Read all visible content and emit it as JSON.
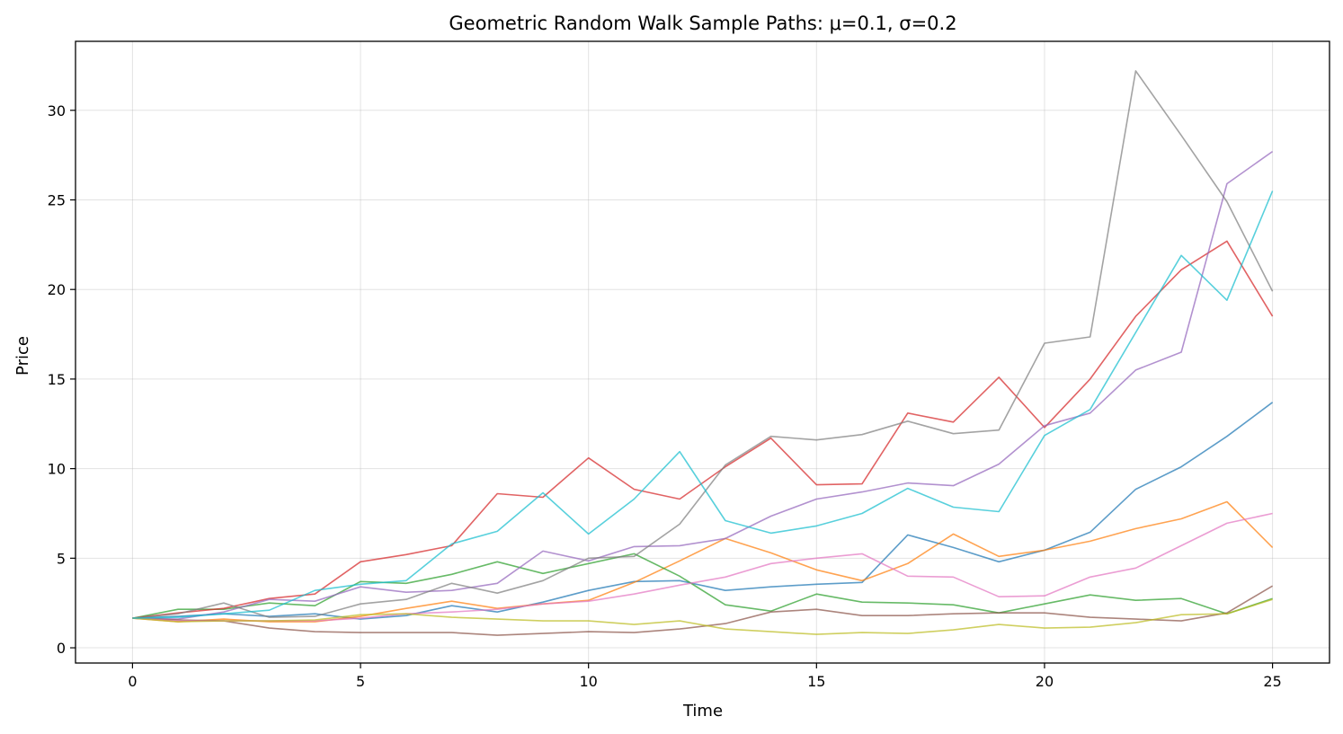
{
  "chart_data": {
    "type": "line",
    "title": "Geometric Random Walk Sample Paths: μ=0.1, σ=0.2",
    "xlabel": "Time",
    "ylabel": "Price",
    "xlim": [
      -1.25,
      26.25
    ],
    "ylim": [
      -0.85,
      33.85
    ],
    "xticks": [
      0,
      5,
      10,
      15,
      20,
      25
    ],
    "yticks": [
      0,
      5,
      10,
      15,
      20,
      25,
      30
    ],
    "grid": true,
    "legend": "none",
    "x": [
      0,
      1,
      2,
      3,
      4,
      5,
      6,
      7,
      8,
      9,
      10,
      11,
      12,
      13,
      14,
      15,
      16,
      17,
      18,
      19,
      20,
      21,
      22,
      23,
      24,
      25
    ],
    "series": [
      {
        "color": "#1f77b4",
        "values": [
          1.65,
          1.75,
          1.9,
          1.75,
          1.9,
          1.6,
          1.8,
          2.35,
          2.0,
          2.55,
          3.2,
          3.7,
          3.75,
          3.2,
          3.4,
          3.55,
          3.65,
          6.3,
          5.6,
          4.8,
          5.45,
          6.45,
          8.85,
          10.1,
          11.8,
          13.7
        ]
      },
      {
        "color": "#ff7f0e",
        "values": [
          1.65,
          1.45,
          1.6,
          1.45,
          1.45,
          1.75,
          2.2,
          2.6,
          2.2,
          2.45,
          2.65,
          3.65,
          4.85,
          6.1,
          5.3,
          4.35,
          3.75,
          4.7,
          6.35,
          5.1,
          5.45,
          5.95,
          6.65,
          7.2,
          8.15,
          5.6
        ]
      },
      {
        "color": "#2ca02c",
        "values": [
          1.65,
          2.15,
          2.15,
          2.5,
          2.35,
          3.7,
          3.6,
          4.1,
          4.8,
          4.15,
          4.7,
          5.25,
          4.0,
          2.4,
          2.05,
          3.0,
          2.55,
          2.5,
          2.4,
          1.95,
          2.45,
          2.95,
          2.65,
          2.75,
          1.9,
          2.75
        ]
      },
      {
        "color": "#d62728",
        "values": [
          1.65,
          1.95,
          2.2,
          2.75,
          3.0,
          4.8,
          5.2,
          5.7,
          8.6,
          8.4,
          10.6,
          8.85,
          8.3,
          10.1,
          11.7,
          9.1,
          9.15,
          13.1,
          12.6,
          15.1,
          12.3,
          15.0,
          18.5,
          21.1,
          22.7,
          18.5
        ]
      },
      {
        "color": "#9467bd",
        "values": [
          1.65,
          1.6,
          2.0,
          2.7,
          2.6,
          3.4,
          3.1,
          3.2,
          3.6,
          5.4,
          4.85,
          5.65,
          5.7,
          6.1,
          7.35,
          8.3,
          8.7,
          9.2,
          9.05,
          10.25,
          12.4,
          13.1,
          15.5,
          16.5,
          25.9,
          27.7
        ]
      },
      {
        "color": "#8c564b",
        "values": [
          1.65,
          1.55,
          1.5,
          1.1,
          0.9,
          0.85,
          0.85,
          0.85,
          0.7,
          0.8,
          0.9,
          0.85,
          1.05,
          1.35,
          2.0,
          2.15,
          1.8,
          1.8,
          1.9,
          1.95,
          1.95,
          1.7,
          1.6,
          1.5,
          1.95,
          3.45
        ]
      },
      {
        "color": "#e377c2",
        "values": [
          1.65,
          1.5,
          1.5,
          1.5,
          1.5,
          1.65,
          1.9,
          2.0,
          2.15,
          2.45,
          2.6,
          3.0,
          3.5,
          3.95,
          4.7,
          5.0,
          5.25,
          4.0,
          3.95,
          2.85,
          2.9,
          3.95,
          4.45,
          5.7,
          6.95,
          7.5
        ]
      },
      {
        "color": "#7f7f7f",
        "values": [
          1.65,
          1.9,
          2.5,
          1.7,
          1.75,
          2.45,
          2.7,
          3.6,
          3.05,
          3.75,
          5.0,
          5.1,
          6.9,
          10.2,
          11.8,
          11.6,
          11.9,
          12.65,
          11.95,
          12.15,
          17.0,
          17.35,
          32.2,
          28.6,
          24.9,
          19.9
        ]
      },
      {
        "color": "#bcbd22",
        "values": [
          1.65,
          1.45,
          1.5,
          1.5,
          1.55,
          1.85,
          1.9,
          1.7,
          1.6,
          1.5,
          1.5,
          1.3,
          1.5,
          1.05,
          0.9,
          0.75,
          0.85,
          0.8,
          1.0,
          1.3,
          1.1,
          1.15,
          1.4,
          1.85,
          1.9,
          2.7
        ]
      },
      {
        "color": "#17becf",
        "values": [
          1.65,
          1.7,
          1.9,
          2.1,
          3.2,
          3.55,
          3.75,
          5.8,
          6.5,
          8.65,
          6.35,
          8.3,
          10.95,
          7.1,
          6.4,
          6.8,
          7.5,
          8.9,
          7.85,
          7.6,
          11.85,
          13.3,
          17.6,
          21.9,
          19.4,
          25.5
        ]
      }
    ]
  }
}
